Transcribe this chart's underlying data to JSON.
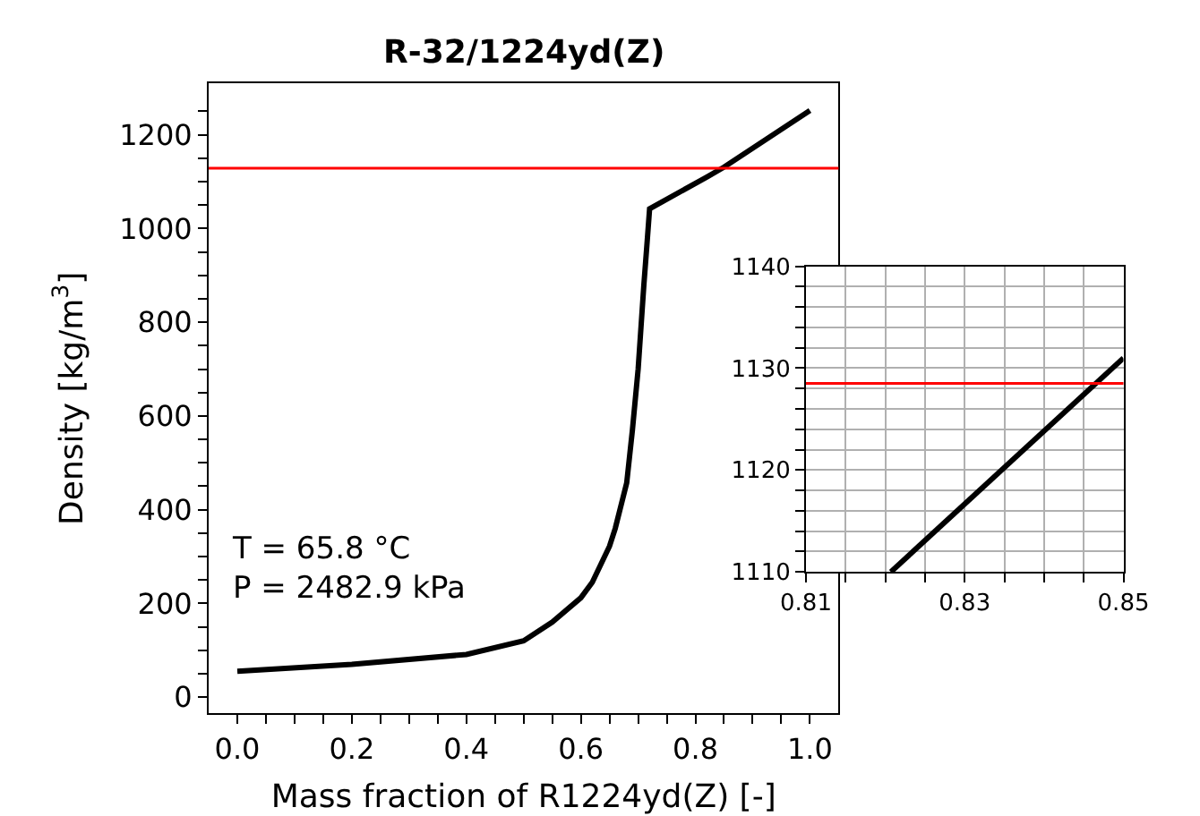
{
  "chart_data": [
    {
      "type": "line",
      "title": "R-32/1224yd(Z)",
      "xlabel": "Mass fraction of R1224yd(Z) [-]",
      "ylabel": "Density [kg/m$^{3}$]",
      "x": [
        0.0,
        0.2,
        0.4,
        0.5,
        0.55,
        0.6,
        0.62,
        0.65,
        0.66,
        0.68,
        0.69,
        0.7,
        0.705,
        0.71,
        0.715,
        0.72,
        0.82,
        0.85,
        1.0
      ],
      "series": [
        {
          "color": "#000000",
          "values": [
            55,
            70,
            91,
            120,
            160,
            212,
            245,
            322,
            360,
            457,
            570,
            700,
            790,
            880,
            960,
            1042,
            1110,
            1131,
            1252
          ]
        }
      ],
      "xlim": [
        -0.05,
        1.05
      ],
      "ylim": [
        -35,
        1310
      ],
      "xticks": [
        {
          "value": 0,
          "label": "0.0"
        },
        {
          "value": 0.05,
          "label": null
        },
        0.2,
        {
          "value": 0.1,
          "label": null
        },
        {
          "value": 0.15,
          "label": null
        },
        {
          "value": 0.25,
          "label": null
        },
        {
          "value": 0.3,
          "label": null
        },
        {
          "value": 0.35,
          "label": null
        },
        0.4,
        {
          "value": 0.45,
          "label": null
        },
        {
          "value": 0.5,
          "label": null
        },
        {
          "value": 0.55,
          "label": null
        },
        0.6,
        {
          "value": 0.65,
          "label": null
        },
        {
          "value": 0.7,
          "label": null
        },
        {
          "value": 0.75,
          "label": null
        },
        0.8,
        {
          "value": 0.85,
          "label": null
        },
        {
          "value": 0.9,
          "label": null
        },
        {
          "value": 0.95,
          "label": null
        },
        {
          "value": 1.0,
          "label": "1.0"
        }
      ],
      "yticks": [
        0,
        {
          "value": 50,
          "label": null
        },
        {
          "value": 100,
          "label": null
        },
        {
          "value": 150,
          "label": null
        },
        200,
        {
          "value": 250,
          "label": null
        },
        {
          "value": 300,
          "label": null
        },
        {
          "value": 350,
          "label": null
        },
        400,
        {
          "value": 450,
          "label": null
        },
        {
          "value": 500,
          "label": null
        },
        {
          "value": 550,
          "label": null
        },
        600,
        {
          "value": 650,
          "label": null
        },
        {
          "value": 700,
          "label": null
        },
        {
          "value": 750,
          "label": null
        },
        800,
        {
          "value": 850,
          "label": null
        },
        {
          "value": 900,
          "label": null
        },
        {
          "value": 950,
          "label": null
        },
        1000,
        {
          "value": 1050,
          "label": null
        },
        {
          "value": 1100,
          "label": null
        },
        {
          "value": 1150,
          "label": null
        },
        1200,
        {
          "value": 1250,
          "label": null
        }
      ],
      "ref_lines": [
        {
          "axis": "y",
          "value": 1128.5,
          "color": "#ff0000"
        }
      ],
      "annotations": [
        "T = 65.8 °C\nP = 2482.9 kPa"
      ],
      "grid": false
    },
    {
      "type": "line",
      "x": [
        0.8207,
        0.85
      ],
      "series": [
        {
          "color": "#000000",
          "values": [
            1110,
            1131
          ]
        }
      ],
      "xlim": [
        0.81,
        0.85
      ],
      "ylim": [
        1110,
        1140
      ],
      "xticks": [
        0.81,
        {
          "value": 0.815,
          "label": null
        },
        {
          "value": 0.82,
          "label": null
        },
        {
          "value": 0.825,
          "label": null
        },
        0.83,
        {
          "value": 0.835,
          "label": null
        },
        {
          "value": 0.84,
          "label": null
        },
        {
          "value": 0.845,
          "label": null
        },
        0.85
      ],
      "yticks": [
        1110,
        {
          "value": 1112,
          "label": null
        },
        {
          "value": 1114,
          "label": null
        },
        {
          "value": 1116,
          "label": null
        },
        {
          "value": 1118,
          "label": null
        },
        1120,
        {
          "value": 1122,
          "label": null
        },
        {
          "value": 1124,
          "label": null
        },
        {
          "value": 1126,
          "label": null
        },
        {
          "value": 1128,
          "label": null
        },
        1130,
        {
          "value": 1132,
          "label": null
        },
        {
          "value": 1134,
          "label": null
        },
        {
          "value": 1136,
          "label": null
        },
        {
          "value": 1138,
          "label": null
        },
        1140
      ],
      "ref_lines": [
        {
          "axis": "y",
          "value": 1128.5,
          "color": "#ff0000"
        }
      ],
      "grid": true
    }
  ]
}
